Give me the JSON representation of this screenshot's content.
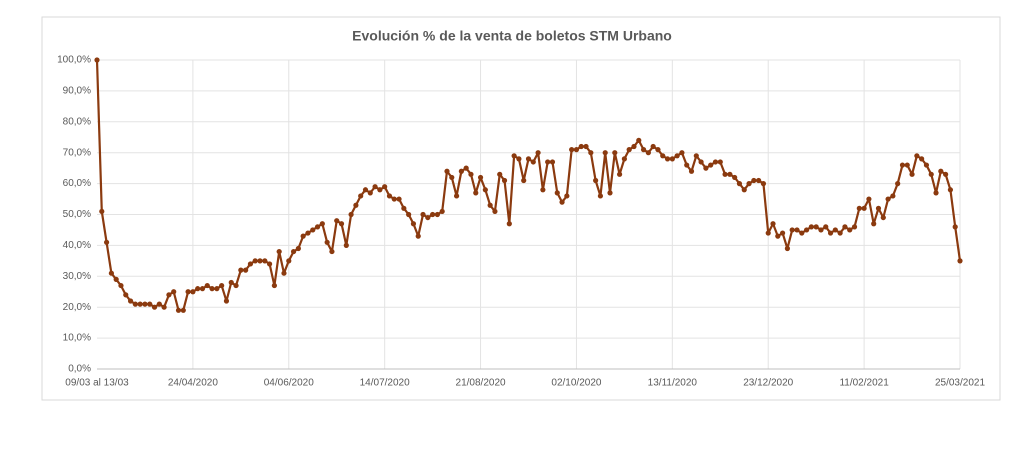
{
  "chart_data": {
    "type": "line",
    "title": "Evolución % de la venta de boletos STM Urbano",
    "categories": [
      "09/03 al 13/03",
      null,
      null,
      null,
      null,
      null,
      null,
      null,
      null,
      null,
      null,
      null,
      null,
      null,
      null,
      null,
      null,
      null,
      null,
      null,
      "24/04/2020",
      null,
      null,
      null,
      null,
      null,
      null,
      null,
      null,
      null,
      null,
      null,
      null,
      null,
      null,
      null,
      null,
      null,
      null,
      null,
      "04/06/2020",
      null,
      null,
      null,
      null,
      null,
      null,
      null,
      null,
      null,
      null,
      null,
      null,
      null,
      null,
      null,
      null,
      null,
      null,
      null,
      "14/07/2020",
      null,
      null,
      null,
      null,
      null,
      null,
      null,
      null,
      null,
      null,
      null,
      null,
      null,
      null,
      null,
      null,
      null,
      null,
      null,
      "21/08/2020",
      null,
      null,
      null,
      null,
      null,
      null,
      null,
      null,
      null,
      null,
      null,
      null,
      null,
      null,
      null,
      null,
      null,
      null,
      null,
      "02/10/2020",
      null,
      null,
      null,
      null,
      null,
      null,
      null,
      null,
      null,
      null,
      null,
      null,
      null,
      null,
      null,
      null,
      null,
      null,
      null,
      "13/11/2020",
      null,
      null,
      null,
      null,
      null,
      null,
      null,
      null,
      null,
      null,
      null,
      null,
      null,
      null,
      null,
      null,
      null,
      null,
      null,
      "23/12/2020",
      null,
      null,
      null,
      null,
      null,
      null,
      null,
      null,
      null,
      null,
      null,
      null,
      null,
      null,
      null,
      null,
      null,
      null,
      null,
      "11/02/2021",
      null,
      null,
      null,
      null,
      null,
      null,
      null,
      null,
      null,
      null,
      null,
      null,
      null,
      null,
      null,
      null,
      null,
      null,
      null,
      "25/03/2021"
    ],
    "values": [
      100,
      51,
      41,
      31,
      29,
      27,
      24,
      22,
      21,
      21,
      21,
      21,
      20,
      21,
      20,
      24,
      25,
      19,
      19,
      25,
      25,
      26,
      26,
      27,
      26,
      26,
      27,
      22,
      28,
      27,
      32,
      32,
      34,
      35,
      35,
      35,
      34,
      27,
      38,
      31,
      35,
      38,
      39,
      43,
      44,
      45,
      46,
      47,
      41,
      38,
      48,
      47,
      40,
      50,
      53,
      56,
      58,
      57,
      59,
      58,
      59,
      56,
      55,
      55,
      52,
      50,
      47,
      43,
      50,
      49,
      50,
      50,
      51,
      64,
      62,
      56,
      64,
      65,
      63,
      57,
      62,
      58,
      53,
      51,
      63,
      61,
      47,
      69,
      68,
      61,
      68,
      67,
      70,
      58,
      67,
      67,
      57,
      54,
      56,
      71,
      71,
      72,
      72,
      70,
      61,
      56,
      70,
      57,
      70,
      63,
      68,
      71,
      72,
      74,
      71,
      70,
      72,
      71,
      69,
      68,
      68,
      69,
      70,
      66,
      64,
      69,
      67,
      65,
      66,
      67,
      67,
      63,
      63,
      62,
      60,
      58,
      60,
      61,
      61,
      60,
      44,
      47,
      43,
      44,
      39,
      45,
      45,
      44,
      45,
      46,
      46,
      45,
      46,
      44,
      45,
      44,
      46,
      45,
      46,
      52,
      52,
      55,
      47,
      52,
      49,
      55,
      56,
      60,
      66,
      66,
      63,
      69,
      68,
      66,
      63,
      57,
      64,
      63,
      58,
      46,
      35
    ],
    "color": "#8b3a0f",
    "ylim": [
      0,
      100
    ],
    "yticks": [
      {
        "value": 0,
        "label": "0,0%"
      },
      {
        "value": 10,
        "label": "10,0%"
      },
      {
        "value": 20,
        "label": "20,0%"
      },
      {
        "value": 30,
        "label": "30,0%"
      },
      {
        "value": 40,
        "label": "40,0%"
      },
      {
        "value": 50,
        "label": "50,0%"
      },
      {
        "value": 60,
        "label": "60,0%"
      },
      {
        "value": 70,
        "label": "70,0%"
      },
      {
        "value": 80,
        "label": "80,0%"
      },
      {
        "value": 90,
        "label": "90,0%"
      },
      {
        "value": 100,
        "label": "100,0%"
      }
    ],
    "grid": true
  }
}
